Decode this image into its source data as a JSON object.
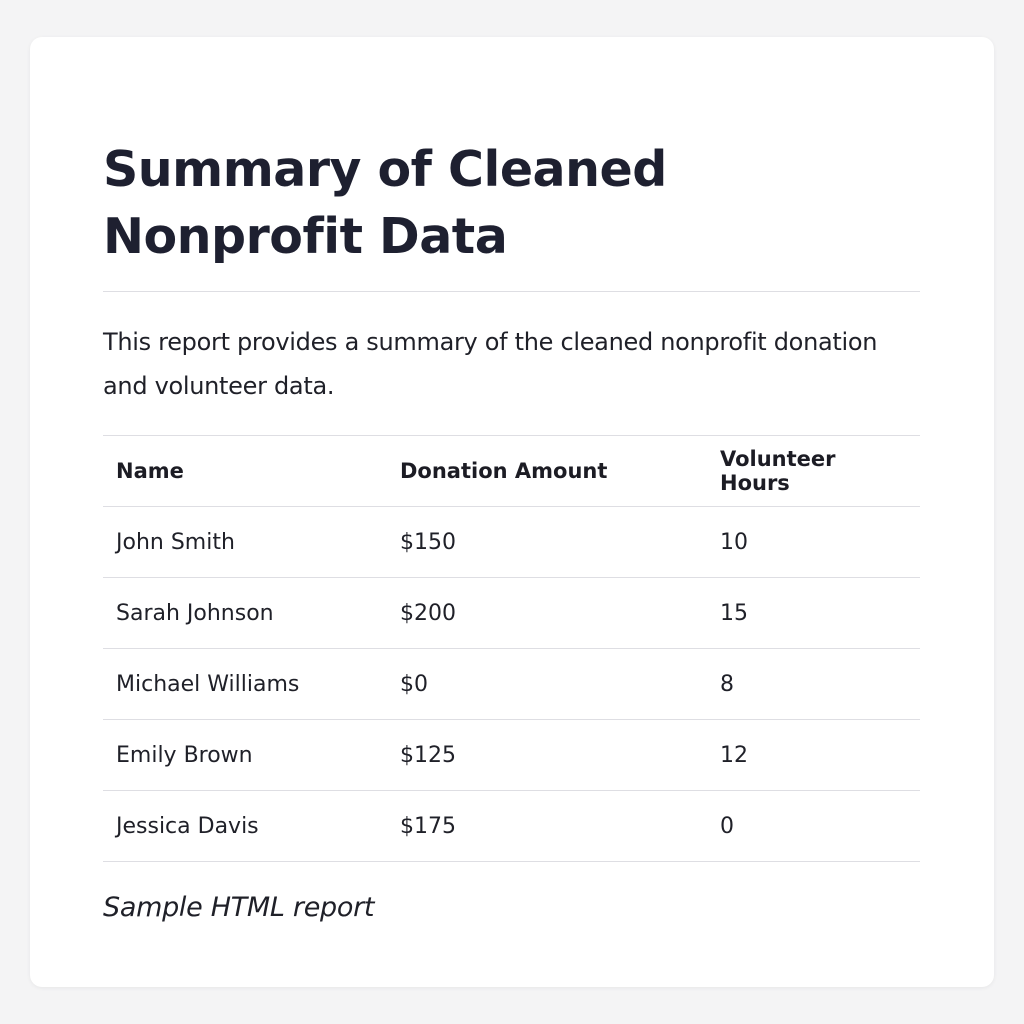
{
  "report": {
    "title": "Summary of Cleaned Nonprofit Data",
    "intro": "This report provides a summary of the cleaned nonprofit donation and volunteer data.",
    "caption": "Sample HTML report"
  },
  "table": {
    "headers": [
      "Name",
      "Donation Amount",
      "Volunteer Hours"
    ],
    "rows": [
      [
        "John Smith",
        "$150",
        "10"
      ],
      [
        "Sarah Johnson",
        "$200",
        "15"
      ],
      [
        "Michael Williams",
        "$0",
        "8"
      ],
      [
        "Emily Brown",
        "$125",
        "12"
      ],
      [
        "Jessica Davis",
        "$175",
        "0"
      ]
    ]
  }
}
